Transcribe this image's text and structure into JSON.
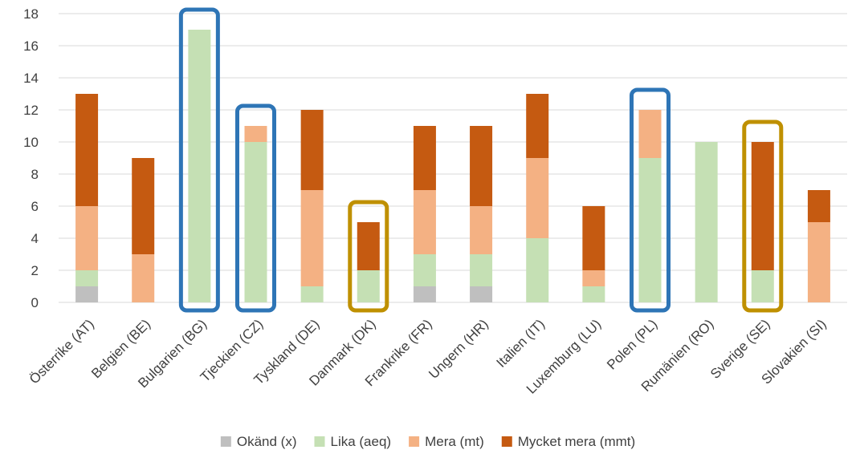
{
  "chart_data": {
    "type": "bar",
    "stacked": true,
    "categories": [
      "Österrike (AT)",
      "Belgien (BE)",
      "Bulgarien (BG)",
      "Tjeckien (CZ)",
      "Tyskland (DE)",
      "Danmark (DK)",
      "Frankrike (FR)",
      "Ungern (HR)",
      "Italien (IT)",
      "Luxemburg (LU)",
      "Polen (PL)",
      "Rumänien (RO)",
      "Sverige (SE)",
      "Slovakien (SI)"
    ],
    "series": [
      {
        "name": "Okänd (x)",
        "color": "#bfbfbf",
        "values": [
          1,
          0,
          0,
          0,
          0,
          0,
          1,
          1,
          0,
          0,
          0,
          0,
          0,
          0
        ]
      },
      {
        "name": "Lika (aeq)",
        "color": "#c5e0b4",
        "values": [
          1,
          0,
          17,
          10,
          1,
          2,
          2,
          2,
          4,
          1,
          9,
          10,
          2,
          0
        ]
      },
      {
        "name": "Mera (mt)",
        "color": "#f4b183",
        "values": [
          4,
          3,
          0,
          1,
          6,
          0,
          4,
          3,
          5,
          1,
          3,
          0,
          0,
          5
        ]
      },
      {
        "name": "Mycket mera (mmt)",
        "color": "#c55a11",
        "values": [
          7,
          6,
          0,
          0,
          5,
          3,
          4,
          5,
          4,
          4,
          0,
          0,
          8,
          2
        ]
      }
    ],
    "ylim": [
      0,
      18
    ],
    "yticks": [
      "0",
      "2",
      "4",
      "6",
      "8",
      "10",
      "12",
      "14",
      "16",
      "18"
    ],
    "grid": true,
    "legend": "bottom",
    "highlights": [
      {
        "category": "Bulgarien (BG)",
        "color": "#2e75b6"
      },
      {
        "category": "Tjeckien (CZ)",
        "color": "#2e75b6"
      },
      {
        "category": "Polen (PL)",
        "color": "#2e75b6"
      },
      {
        "category": "Danmark (DK)",
        "color": "#bf9000"
      },
      {
        "category": "Sverige (SE)",
        "color": "#bf9000"
      }
    ]
  }
}
